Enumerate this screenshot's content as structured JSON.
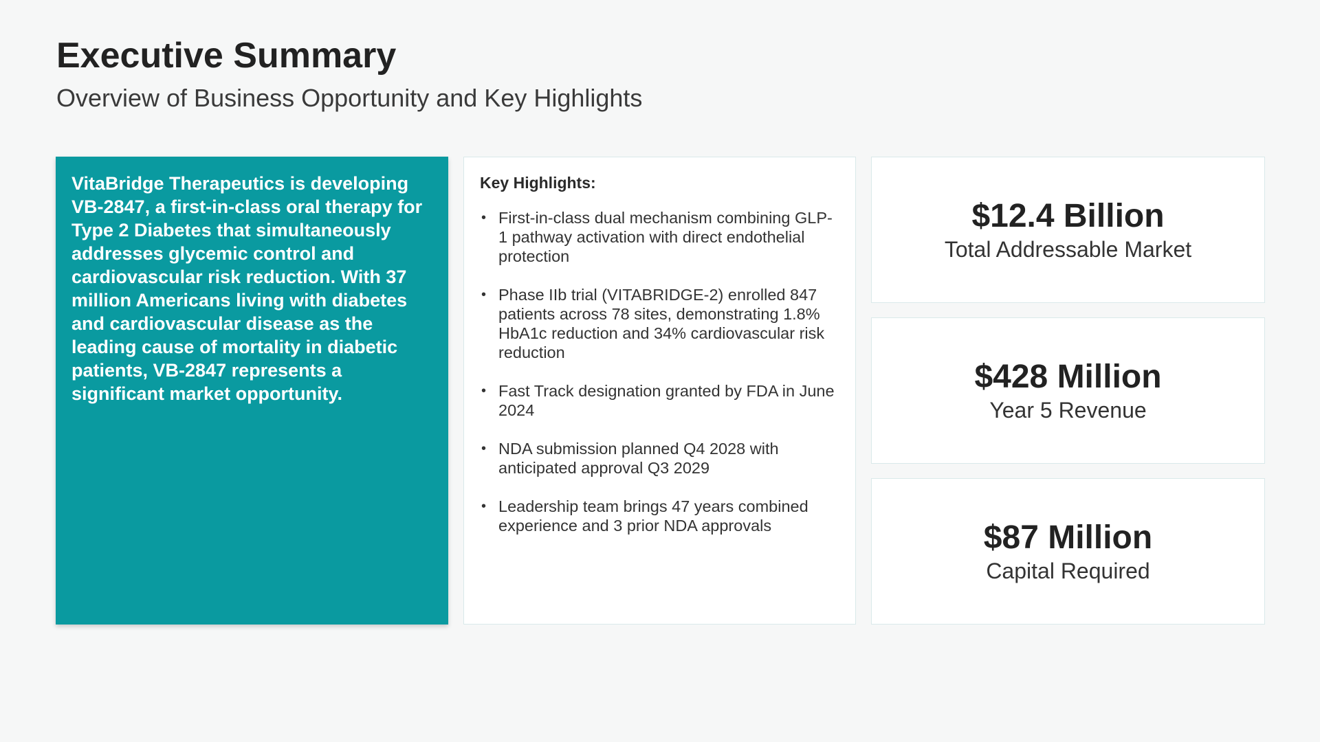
{
  "header": {
    "title": "Executive Summary",
    "subtitle": "Overview of Business Opportunity and Key Highlights"
  },
  "overview": {
    "text": "VitaBridge Therapeutics is developing VB-2847, a first-in-class oral therapy for Type 2 Diabetes that simultaneously addresses glycemic control and cardiovascular risk reduction. With 37 million Americans living with diabetes and cardiovascular disease as the leading cause of mortality in diabetic patients, VB-2847 represents a significant market opportunity."
  },
  "highlights": {
    "heading": "Key Highlights:",
    "items": [
      "First-in-class dual mechanism combining GLP-1 pathway activation with direct endothelial protection",
      "Phase IIb trial (VITABRIDGE-2) enrolled 847 patients across 78 sites, demonstrating 1.8% HbA1c reduction and 34% cardiovascular risk reduction",
      "Fast Track designation granted by FDA in June 2024",
      "NDA submission planned Q4 2028 with anticipated approval Q3 2029",
      "Leadership team brings 47 years combined experience and 3 prior NDA approvals"
    ]
  },
  "metrics": [
    {
      "value": "$12.4 Billion",
      "label": "Total Addressable Market"
    },
    {
      "value": "$428 Million",
      "label": "Year 5 Revenue"
    },
    {
      "value": "$87 Million",
      "label": "Capital Required"
    }
  ],
  "colors": {
    "accent": "#0a9aa0",
    "background": "#f6f7f7",
    "card": "#ffffff"
  }
}
